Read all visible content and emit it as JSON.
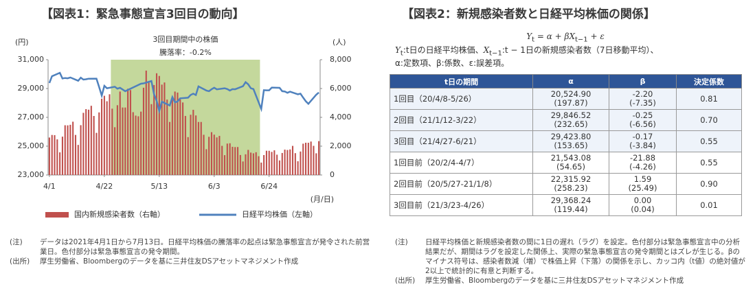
{
  "chart_data": {
    "type": "bar_line",
    "title": "【図表1：緊急事態宣言3回目の動向】",
    "y_unit": "(円)",
    "y2_unit": "(人)",
    "x_unit": "(月/日)",
    "annotations": [
      "3回目期間中の株価",
      "騰落率：-0.2%"
    ],
    "shaded_x": [
      23.5,
      80.5
    ],
    "shade_color": "#c4d89c",
    "xlim": [
      -0.5,
      103.5
    ],
    "xticks": [
      {
        "value": 0,
        "label": "4/1"
      },
      {
        "value": 21,
        "label": "4/22"
      },
      {
        "value": 42,
        "label": "5/13"
      },
      {
        "value": 63,
        "label": "6/3"
      },
      {
        "value": 84,
        "label": "6/24"
      }
    ],
    "ylim": [
      23000,
      31000
    ],
    "yticks": [
      {
        "value": 23000,
        "label": "23,000"
      },
      {
        "value": 25000,
        "label": "25,000"
      },
      {
        "value": 27000,
        "label": "27,000"
      },
      {
        "value": 29000,
        "label": "29,000"
      },
      {
        "value": 31000,
        "label": "31,000"
      }
    ],
    "y2lim": [
      0,
      8000
    ],
    "y2ticks": [
      0,
      {
        "value": 2000,
        "label": "2,000"
      },
      {
        "value": 4000,
        "label": "4,000"
      },
      {
        "value": 6000,
        "label": "6,000"
      },
      {
        "value": 8000,
        "label": "8,000"
      }
    ],
    "grid": false,
    "series": [
      {
        "name": "国内新規感染者数（右軸）",
        "type": "bar",
        "axis": "y2",
        "color": "#c0504d",
        "x": [
          0,
          1,
          2,
          3,
          4,
          5,
          6,
          7,
          8,
          9,
          10,
          11,
          12,
          13,
          14,
          15,
          16,
          17,
          18,
          19,
          20,
          21,
          22,
          23,
          24,
          25,
          26,
          27,
          28,
          29,
          30,
          31,
          32,
          33,
          34,
          35,
          36,
          37,
          38,
          39,
          40,
          41,
          42,
          43,
          44,
          45,
          46,
          47,
          48,
          49,
          50,
          51,
          52,
          53,
          54,
          55,
          56,
          57,
          58,
          59,
          60,
          61,
          62,
          63,
          64,
          65,
          66,
          67,
          68,
          69,
          70,
          71,
          72,
          73,
          74,
          75,
          76,
          77,
          78,
          79,
          80,
          81,
          82,
          83,
          84,
          85,
          86,
          87,
          88,
          89,
          90,
          91,
          92,
          93,
          94,
          95,
          96,
          97,
          98,
          99,
          100,
          101,
          102,
          103
        ],
        "values": [
          2599,
          2777,
          2765,
          2471,
          1570,
          2660,
          3451,
          3444,
          3483,
          3697,
          2779,
          2087,
          3456,
          4312,
          4570,
          4532,
          4802,
          4095,
          2924,
          4341,
          5291,
          5496,
          5116,
          5601,
          4602,
          3314,
          4841,
          5790,
          4682,
          4681,
          5986,
          5891,
          4358,
          4120,
          4072,
          4396,
          6054,
          7244,
          6479,
          4917,
          6242,
          7057,
          6872,
          6270,
          6419,
          5233,
          3680,
          5228,
          5790,
          5719,
          5245,
          5032,
          4098,
          2627,
          4180,
          4522,
          4131,
          3679,
          3679,
          2789,
          1790,
          2648,
          2971,
          2798,
          2607,
          2711,
          2022,
          1376,
          2179,
          2201,
          1955,
          1936,
          1941,
          1386,
          937,
          1435,
          1741,
          1554,
          1504,
          1580,
          1303,
          860,
          1382,
          1682,
          1679,
          1602,
          1712,
          1409,
          1010,
          1527,
          1760,
          1735,
          1773,
          2019,
          1515,
          954,
          1628,
          2172,
          2238,
          2237,
          2321,
          2023,
          1504,
          2350
        ]
      },
      {
        "name": "日経平均株価（左軸）",
        "type": "line",
        "axis": "y",
        "color": "#4f81bd",
        "x": [
          0,
          1,
          4,
          5,
          6,
          7,
          8,
          11,
          12,
          13,
          14,
          15,
          18,
          19,
          20,
          21,
          22,
          25,
          26,
          27,
          29,
          35,
          36,
          39,
          40,
          41,
          42,
          43,
          46,
          47,
          48,
          49,
          50,
          53,
          54,
          55,
          56,
          57,
          60,
          61,
          62,
          63,
          64,
          67,
          68,
          69,
          70,
          71,
          74,
          75,
          76,
          77,
          78,
          81,
          82,
          83,
          84,
          85,
          88,
          89,
          90,
          91,
          92,
          95,
          96,
          97,
          98,
          99,
          102,
          103
        ],
        "values": [
          29388,
          29854,
          30089,
          29696,
          29730,
          29708,
          29768,
          29538,
          29751,
          29620,
          29642,
          29683,
          29685,
          29100,
          28508,
          29188,
          29020,
          29126,
          28991,
          29053,
          28812,
          29331,
          29357,
          29518,
          28608,
          28147,
          27448,
          28084,
          27824,
          28406,
          28044,
          28098,
          28317,
          28364,
          28553,
          28642,
          28549,
          29149,
          28860,
          28814,
          28946,
          29058,
          28941,
          29019,
          28963,
          28860,
          28958,
          28948,
          29161,
          29441,
          29291,
          29018,
          28964,
          27588,
          28884,
          28874,
          28875,
          29066,
          29048,
          28812,
          28792,
          28707,
          28783,
          28598,
          28643,
          28366,
          28118,
          27940,
          28570,
          28718
        ]
      }
    ]
  },
  "left_notes": [
    [
      "(注)",
      "データは2021年4月1日から7月13日。日経平均株価の騰落率の起点は緊急事態宣言が発令された前営業日。色付部分は緊急事態宣言の発令期間。"
    ],
    [
      "(出所)",
      "厚生労働省、Bloombergのデータを基に三井住友DSアセットマネジメント作成"
    ]
  ],
  "right": {
    "title": "【図表2：新規感染者数と日経平均株価の関係】",
    "formula": [
      "Y",
      "t",
      " = α + β",
      "X",
      "t−1",
      " + ε"
    ],
    "definition": [
      "Y",
      "t",
      ":t日の日経平均株価、",
      "X",
      "t−1",
      ":t − 1日の新規感染者数（7日移動平均）、"
    ],
    "definition2": "α:定数項、β:係数、ε:誤差項。",
    "table": {
      "header": [
        "t日の期間",
        "α",
        "β",
        "決定係数"
      ],
      "highlight_rows": [
        0,
        1,
        2
      ],
      "rows": [
        [
          "1回目（20/4/8-5/26）",
          "20,524.90",
          "(197.87)",
          "-2.20",
          "(-7.35)",
          "0.81"
        ],
        [
          "2回目（21/1/12-3/22）",
          "29,846.52",
          "(232.65)",
          "-0.25",
          "(-6.56)",
          "0.70"
        ],
        [
          "3回目（21/4/27-6/21）",
          "29,423.80",
          "(153.65)",
          "-0.17",
          "(-3.84)",
          "0.55"
        ],
        [
          "1回目前（20/2/4-4/7）",
          "21,543.08",
          "(54.65)",
          "-21.88",
          "(-4.26)",
          "0.55"
        ],
        [
          "2回目前（20/5/27-21/1/8）",
          "22,315.92",
          "(258.23)",
          "1.59",
          "(25.49)",
          "0.90"
        ],
        [
          "3回目前（21/3/23-4/26）",
          "29,368.24",
          "(119.44)",
          "0.00",
          "(0.04)",
          "0.01"
        ]
      ]
    },
    "notes": [
      [
        "(注)",
        "日経平均株価と新規感染者数の間に1日の遅れ（ラグ）を設定。色付部分は緊急事態宣言中の分析結果だが、期間はラグを設定した関係上、実際の緊急事態宣言の発令期間とはズレが生じる。βのマイナス符号は、感染者数減（増）で株価上昇（下落）の関係を示し、カッコ内（t値）の絶対値が2以上で統計的に有意と判断する。"
      ],
      [
        "(出所)",
        "厚生労働省、Bloombergのデータを基に三井住友DSアセットマネジメント作成"
      ]
    ]
  }
}
